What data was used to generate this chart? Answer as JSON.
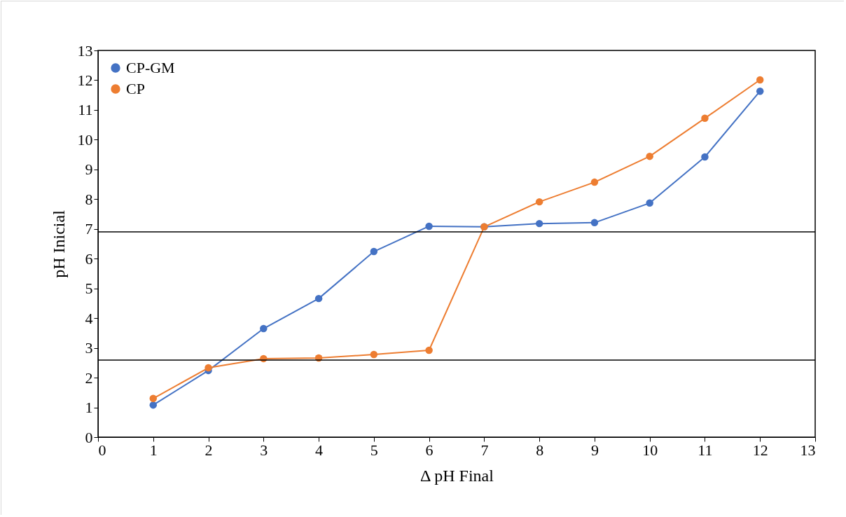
{
  "chart_data": {
    "type": "line",
    "xlabel": "Δ pH Final",
    "ylabel": "pH Inicial",
    "x": [
      1,
      2,
      3,
      4,
      5,
      6,
      7,
      8,
      9,
      10,
      11,
      12
    ],
    "series": [
      {
        "name": "CP-GM",
        "color": "#4472c4",
        "values": [
          1.08,
          2.24,
          3.65,
          4.66,
          6.24,
          7.09,
          7.07,
          7.18,
          7.21,
          7.87,
          9.42,
          11.63
        ]
      },
      {
        "name": "CP",
        "color": "#ed7d31",
        "values": [
          1.3,
          2.33,
          2.64,
          2.66,
          2.78,
          2.92,
          7.07,
          7.91,
          8.57,
          9.44,
          10.72,
          12.01
        ]
      }
    ],
    "xlim": [
      0,
      13
    ],
    "ylim": [
      0,
      13
    ],
    "xticks": [
      0,
      1,
      2,
      3,
      4,
      5,
      6,
      7,
      8,
      9,
      10,
      11,
      12,
      13
    ],
    "yticks": [
      0,
      1,
      2,
      3,
      4,
      5,
      6,
      7,
      8,
      9,
      10,
      11,
      12,
      13
    ],
    "ref_lines": [
      {
        "axis": "y",
        "value": 6.9,
        "color": "#000000"
      },
      {
        "axis": "y",
        "value": 2.59,
        "color": "#000000"
      }
    ],
    "grid": false,
    "legend": "top left",
    "marker": "circle",
    "line_style": "solid"
  }
}
